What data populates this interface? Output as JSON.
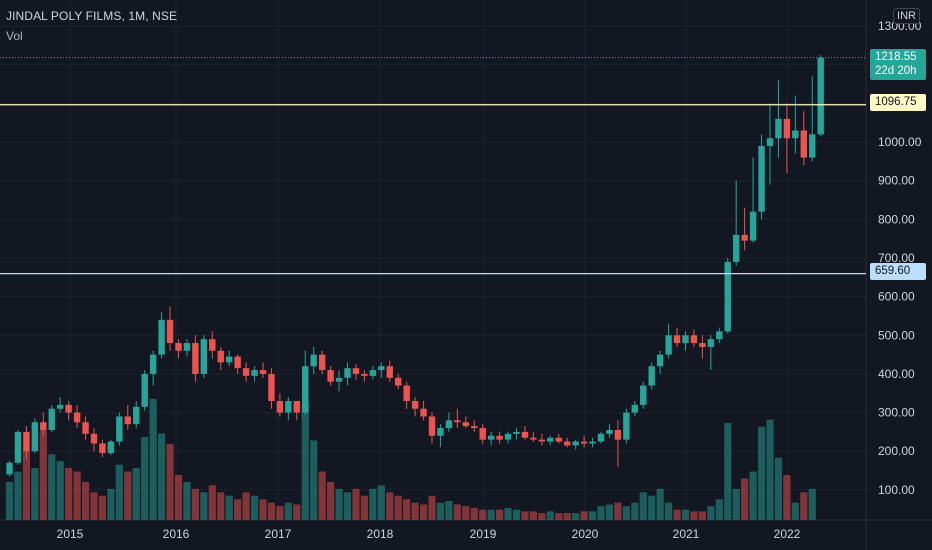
{
  "header": {
    "title": "JINDAL POLY FILMS, 1M, NSE",
    "volume_label": "Vol",
    "currency": "INR"
  },
  "price_tags": {
    "last_price": "1218.55",
    "countdown": "22d 20h",
    "line1": "1096.75",
    "line2": "659.60"
  },
  "colors": {
    "background": "#131722",
    "up": "#26a69a",
    "down": "#ef5350",
    "grid": "#1e222d",
    "axis_text": "#d1d4dc",
    "line1": "#fff9c4",
    "line2": "#bbdefb"
  },
  "chart_data": {
    "type": "candlestick",
    "title": "JINDAL POLY FILMS, 1M, NSE",
    "x_ticks": [
      "2015",
      "2016",
      "2017",
      "2018",
      "2019",
      "2020",
      "2021",
      "2022"
    ],
    "y_ticks": [
      "100.00",
      "200.00",
      "300.00",
      "400.00",
      "500.00",
      "600.00",
      "700.00",
      "800.00",
      "900.00",
      "1000.00",
      "1300.00"
    ],
    "ylim": [
      0,
      1300
    ],
    "horizontal_lines": [
      1096.75,
      659.6
    ],
    "last_price": 1218.55,
    "candles_ohlc": [
      [
        140,
        175,
        135,
        170
      ],
      [
        170,
        255,
        165,
        250
      ],
      [
        250,
        265,
        180,
        200
      ],
      [
        200,
        285,
        195,
        275
      ],
      [
        275,
        300,
        240,
        255
      ],
      [
        255,
        320,
        250,
        310
      ],
      [
        310,
        340,
        300,
        320
      ],
      [
        320,
        330,
        280,
        300
      ],
      [
        300,
        320,
        260,
        275
      ],
      [
        275,
        290,
        230,
        245
      ],
      [
        245,
        260,
        200,
        220
      ],
      [
        220,
        230,
        185,
        195
      ],
      [
        195,
        230,
        190,
        225
      ],
      [
        225,
        300,
        215,
        290
      ],
      [
        290,
        320,
        255,
        270
      ],
      [
        270,
        330,
        260,
        315
      ],
      [
        315,
        410,
        305,
        400
      ],
      [
        400,
        460,
        370,
        450
      ],
      [
        450,
        560,
        440,
        540
      ],
      [
        540,
        575,
        460,
        480
      ],
      [
        480,
        490,
        440,
        460
      ],
      [
        460,
        490,
        445,
        480
      ],
      [
        480,
        500,
        380,
        400
      ],
      [
        400,
        500,
        390,
        490
      ],
      [
        490,
        510,
        440,
        460
      ],
      [
        460,
        470,
        410,
        430
      ],
      [
        430,
        460,
        420,
        445
      ],
      [
        445,
        450,
        400,
        415
      ],
      [
        415,
        430,
        380,
        395
      ],
      [
        395,
        420,
        380,
        410
      ],
      [
        410,
        430,
        390,
        400
      ],
      [
        400,
        415,
        310,
        330
      ],
      [
        330,
        350,
        290,
        300
      ],
      [
        300,
        340,
        280,
        330
      ],
      [
        330,
        320,
        280,
        300
      ],
      [
        300,
        460,
        295,
        420
      ],
      [
        420,
        470,
        400,
        450
      ],
      [
        450,
        460,
        400,
        410
      ],
      [
        410,
        420,
        370,
        380
      ],
      [
        380,
        410,
        355,
        390
      ],
      [
        390,
        430,
        370,
        415
      ],
      [
        415,
        425,
        385,
        400
      ],
      [
        400,
        410,
        380,
        395
      ],
      [
        395,
        420,
        385,
        410
      ],
      [
        410,
        430,
        390,
        420
      ],
      [
        420,
        435,
        380,
        390
      ],
      [
        390,
        400,
        360,
        370
      ],
      [
        370,
        380,
        310,
        330
      ],
      [
        330,
        340,
        290,
        310
      ],
      [
        310,
        330,
        280,
        290
      ],
      [
        290,
        300,
        220,
        240
      ],
      [
        240,
        270,
        210,
        260
      ],
      [
        260,
        300,
        250,
        280
      ],
      [
        280,
        310,
        260,
        275
      ],
      [
        275,
        290,
        260,
        265
      ],
      [
        265,
        280,
        250,
        260
      ],
      [
        260,
        270,
        220,
        230
      ],
      [
        230,
        250,
        215,
        240
      ],
      [
        240,
        250,
        220,
        230
      ],
      [
        230,
        250,
        220,
        245
      ],
      [
        245,
        260,
        230,
        250
      ],
      [
        250,
        265,
        230,
        235
      ],
      [
        235,
        250,
        225,
        230
      ],
      [
        230,
        245,
        215,
        225
      ],
      [
        225,
        240,
        215,
        235
      ],
      [
        235,
        245,
        220,
        225
      ],
      [
        225,
        235,
        210,
        215
      ],
      [
        215,
        230,
        205,
        225
      ],
      [
        225,
        240,
        210,
        220
      ],
      [
        220,
        235,
        210,
        225
      ],
      [
        225,
        250,
        220,
        245
      ],
      [
        245,
        270,
        235,
        255
      ],
      [
        255,
        280,
        160,
        230
      ],
      [
        230,
        310,
        220,
        300
      ],
      [
        300,
        330,
        290,
        320
      ],
      [
        320,
        380,
        310,
        370
      ],
      [
        370,
        430,
        360,
        420
      ],
      [
        420,
        460,
        400,
        450
      ],
      [
        450,
        530,
        440,
        500
      ],
      [
        500,
        520,
        470,
        480
      ],
      [
        480,
        510,
        460,
        500
      ],
      [
        500,
        515,
        470,
        480
      ],
      [
        480,
        500,
        440,
        470
      ],
      [
        470,
        500,
        410,
        490
      ],
      [
        490,
        520,
        480,
        510
      ],
      [
        510,
        700,
        505,
        690
      ],
      [
        690,
        900,
        680,
        760
      ],
      [
        760,
        830,
        720,
        745
      ],
      [
        745,
        960,
        740,
        820
      ],
      [
        820,
        1020,
        800,
        990
      ],
      [
        990,
        1100,
        890,
        1010
      ],
      [
        1010,
        1160,
        960,
        1060
      ],
      [
        1060,
        1100,
        920,
        1010
      ],
      [
        1010,
        1120,
        970,
        1030
      ],
      [
        1030,
        1080,
        940,
        960
      ],
      [
        960,
        1170,
        950,
        1020
      ],
      [
        1020,
        1225,
        1015,
        1218.55
      ]
    ],
    "volume_relative": [
      22,
      28,
      40,
      30,
      52,
      38,
      34,
      30,
      28,
      22,
      16,
      14,
      18,
      32,
      28,
      30,
      48,
      70,
      50,
      44,
      26,
      22,
      18,
      16,
      20,
      16,
      14,
      12,
      16,
      14,
      12,
      10,
      8,
      10,
      9,
      68,
      46,
      28,
      22,
      18,
      16,
      18,
      14,
      18,
      20,
      16,
      14,
      12,
      10,
      9,
      14,
      10,
      11,
      9,
      8,
      7,
      6,
      6,
      6,
      7,
      6,
      5,
      5,
      4,
      5,
      4,
      4,
      4,
      5,
      5,
      8,
      9,
      10,
      8,
      10,
      16,
      14,
      18,
      10,
      6,
      6,
      5,
      5,
      8,
      12,
      56,
      18,
      24,
      28,
      54,
      58,
      36,
      26,
      10,
      16,
      18
    ]
  }
}
